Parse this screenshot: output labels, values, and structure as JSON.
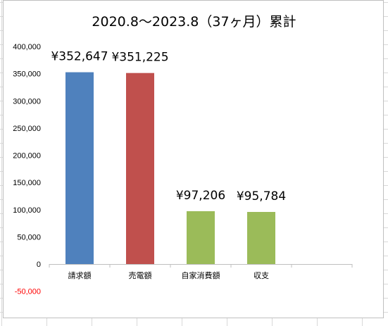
{
  "chart_data": {
    "type": "bar",
    "title": "2020.8〜2023.8（37ヶ月）累計",
    "categories": [
      "請求額",
      "売電額",
      "自家消費額",
      "収支",
      ""
    ],
    "values": [
      352647,
      351225,
      97206,
      95784,
      null
    ],
    "data_labels": [
      "¥352,647",
      "¥351,225",
      "¥97,206",
      "¥95,784",
      ""
    ],
    "bar_colors": [
      "#4f81bd",
      "#c0504d",
      "#9bbb59",
      "#9bbb59",
      null
    ],
    "y_ticks": [
      "400,000",
      "350,000",
      "300,000",
      "250,000",
      "200,000",
      "150,000",
      "100,000",
      "50,000",
      "0",
      "-50,000"
    ],
    "y_tick_values": [
      400000,
      350000,
      300000,
      250000,
      200000,
      150000,
      100000,
      50000,
      0,
      -50000
    ],
    "ylim": [
      -50000,
      400000
    ],
    "negative_tick_color": "#ff0000",
    "grid": false,
    "legend": "none"
  }
}
